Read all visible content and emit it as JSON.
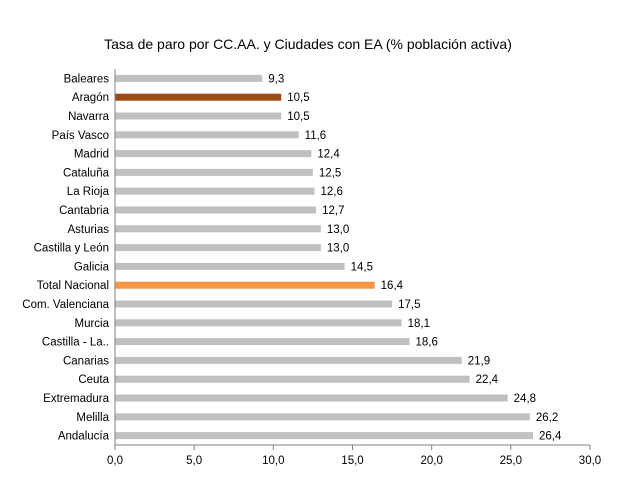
{
  "chart_data": {
    "type": "bar",
    "orientation": "horizontal",
    "title": "Tasa de paro por CC.AA. y Ciudades con EA (% población activa)",
    "categories": [
      "Baleares",
      "Aragón",
      "Navarra",
      "País Vasco",
      "Madrid",
      "Cataluña",
      "La Rioja",
      "Cantabria",
      "Asturias",
      "Castilla y León",
      "Galicia",
      "Total Nacional",
      "Com. Valenciana",
      "Murcia",
      "Castilla - La..",
      "Canarias",
      "Ceuta",
      "Extremadura",
      "Melilla",
      "Andalucía"
    ],
    "values": [
      9.3,
      10.5,
      10.5,
      11.6,
      12.4,
      12.5,
      12.6,
      12.7,
      13.0,
      13.0,
      14.5,
      16.4,
      17.5,
      18.1,
      18.6,
      21.9,
      22.4,
      24.8,
      26.2,
      26.4
    ],
    "value_labels": [
      "9,3",
      "10,5",
      "10,5",
      "11,6",
      "12,4",
      "12,5",
      "12,6",
      "12,7",
      "13,0",
      "13,0",
      "14,5",
      "16,4",
      "17,5",
      "18,1",
      "18,6",
      "21,9",
      "22,4",
      "24,8",
      "26,2",
      "26,4"
    ],
    "xlim": [
      0,
      30
    ],
    "xticks": [
      0,
      5,
      10,
      15,
      20,
      25,
      30
    ],
    "xtick_labels": [
      "0,0",
      "5,0",
      "10,0",
      "15,0",
      "20,0",
      "25,0",
      "30,0"
    ],
    "xlabel": "",
    "ylabel": "",
    "grid": false,
    "colors": {
      "default": "#c0c0c0",
      "highlight_aragon": "#9c4a12",
      "highlight_total": "#f79646"
    },
    "bar_colors": [
      "default",
      "highlight_aragon",
      "default",
      "default",
      "default",
      "default",
      "default",
      "default",
      "default",
      "default",
      "default",
      "highlight_total",
      "default",
      "default",
      "default",
      "default",
      "default",
      "default",
      "default",
      "default"
    ]
  }
}
